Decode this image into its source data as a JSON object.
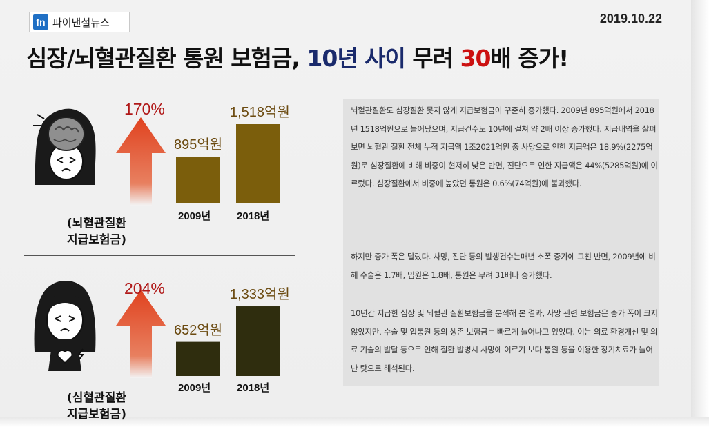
{
  "header": {
    "logo_mark": "fn",
    "logo_name": "파이낸셜뉴스",
    "date": "2019.10.22"
  },
  "headline": {
    "part1": "심장/뇌혈관질환 통원 보험금, ",
    "part2": "10년 사이",
    "part3": " 무려 ",
    "part4": "30",
    "part5": "배 증가!"
  },
  "colors": {
    "headline_blue": "#1a2a6c",
    "headline_red": "#cc1111",
    "arrow_red": "#e0421f",
    "brain_bars": "#7b5e0c",
    "heart_bars": "#2f2d0e",
    "pct_red": "#b01818",
    "amount_brown": "#6b4a10"
  },
  "panels": [
    {
      "icon": "brain-person-icon",
      "growth": "170%",
      "caption_line1": "(뇌혈관질환",
      "caption_line2": "지급보험금)",
      "bars": [
        {
          "year": "2009년",
          "amount": "895억원",
          "value": 895
        },
        {
          "year": "2018년",
          "amount": "1,518억원",
          "value": 1518
        }
      ]
    },
    {
      "icon": "heart-person-icon",
      "growth": "204%",
      "caption_line1": "(심혈관질환",
      "caption_line2": "지급보험금)",
      "bars": [
        {
          "year": "2009년",
          "amount": "652억원",
          "value": 652
        },
        {
          "year": "2018년",
          "amount": "1,333억원",
          "value": 1333
        }
      ]
    }
  ],
  "article": {
    "p1": "뇌혈관질환도 심장질환 못지 않게 지급보험금이 꾸준히 증가했다. 2009년 895억원에서 2018년 1518억원으로 늘어났으며, 지급건수도 10년에 걸쳐 약 2배 이상 증가했다. 지급내역을 살펴보면 뇌혈관 질환 전체 누적 지급액 1조2021억원 중 사망으로 인한 지급액은 18.9%(2275억원)로 심장질환에 비해 비중이 현저히 낮은 반면, 진단으로 인한 지급액은 44%(5285억원)에 이르렀다. 심장질환에서 비중에 높았던 통원은 0.6%(74억원)에 불과했다.",
    "p2": "하지만 증가 폭은 달랐다. 사망, 진단 등의 발생건수는매년 소폭 증가에 그친 반면, 2009년에 비해 수술은 1.7배, 입원은 1.8배, 통원은 무려 31배나 증가했다.",
    "p3": "10년간 지급한 심장 및 뇌혈관 질환보험금을 분석해 본 결과, 사망 관련 보험금은 증가 폭이 크지 않았지만, 수술 및 입통원 등의 생존 보험금는 빠르게 늘어나고 있었다. 이는 의료 환경개선 및 의료 기술의 발달 등으로 인해 질환 발병시 사망에 이르기 보다 통원 등을 이용한 장기치료가 늘어난 탓으로 해석된다."
  }
}
